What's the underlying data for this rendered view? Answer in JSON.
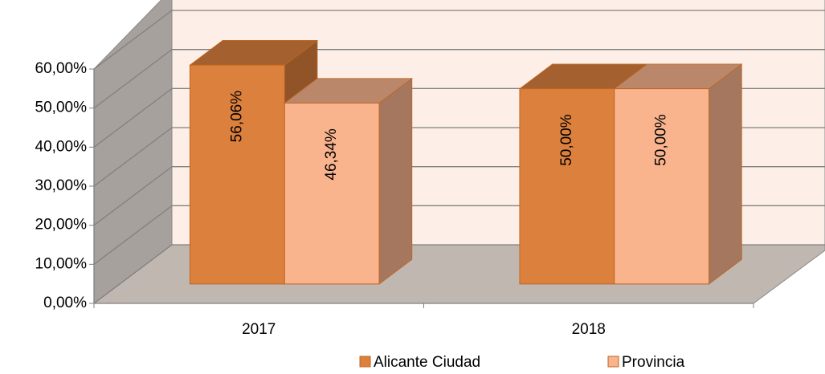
{
  "chart_data": {
    "type": "bar3d",
    "categories": [
      "2017",
      "2018"
    ],
    "series": [
      {
        "name": "Alicante Ciudad",
        "color": "#dc803e",
        "values": [
          56.06,
          50.0
        ],
        "value_labels": [
          "56,06%",
          "50,00%"
        ]
      },
      {
        "name": "Provincia",
        "color": "#f9b48e",
        "values": [
          46.34,
          50.0
        ],
        "value_labels": [
          "46,34%",
          "50,00%"
        ]
      }
    ],
    "ylim": [
      0,
      60
    ],
    "yticks": [
      {
        "value": 0,
        "label": "0,00%"
      },
      {
        "value": 10,
        "label": "10,00%"
      },
      {
        "value": 20,
        "label": "20,00%"
      },
      {
        "value": 30,
        "label": "30,00%"
      },
      {
        "value": 40,
        "label": "40,00%"
      },
      {
        "value": 50,
        "label": "50,00%"
      },
      {
        "value": 60,
        "label": "60,00%"
      }
    ],
    "grid": true,
    "legend": "bottom"
  }
}
